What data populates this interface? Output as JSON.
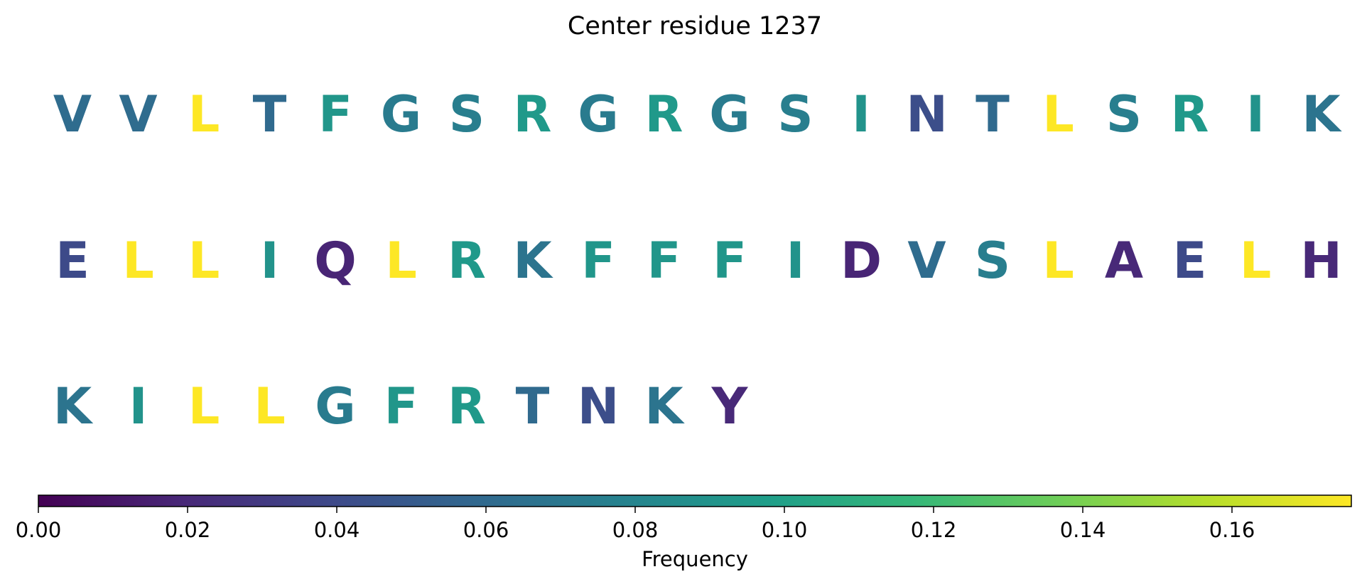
{
  "chart_data": {
    "type": "heatmap",
    "title": "Center residue 1237",
    "residues": [
      {
        "letter": "V",
        "frequency": 0.062
      },
      {
        "letter": "V",
        "frequency": 0.062
      },
      {
        "letter": "L",
        "frequency": 0.176
      },
      {
        "letter": "T",
        "frequency": 0.06
      },
      {
        "letter": "F",
        "frequency": 0.092
      },
      {
        "letter": "G",
        "frequency": 0.073
      },
      {
        "letter": "S",
        "frequency": 0.075
      },
      {
        "letter": "R",
        "frequency": 0.094
      },
      {
        "letter": "G",
        "frequency": 0.073
      },
      {
        "letter": "R",
        "frequency": 0.094
      },
      {
        "letter": "G",
        "frequency": 0.073
      },
      {
        "letter": "S",
        "frequency": 0.075
      },
      {
        "letter": "I",
        "frequency": 0.09
      },
      {
        "letter": "N",
        "frequency": 0.042
      },
      {
        "letter": "T",
        "frequency": 0.06
      },
      {
        "letter": "L",
        "frequency": 0.176
      },
      {
        "letter": "S",
        "frequency": 0.075
      },
      {
        "letter": "R",
        "frequency": 0.094
      },
      {
        "letter": "I",
        "frequency": 0.09
      },
      {
        "letter": "K",
        "frequency": 0.068
      },
      {
        "letter": "E",
        "frequency": 0.04
      },
      {
        "letter": "L",
        "frequency": 0.176
      },
      {
        "letter": "L",
        "frequency": 0.176
      },
      {
        "letter": "I",
        "frequency": 0.09
      },
      {
        "letter": "Q",
        "frequency": 0.018
      },
      {
        "letter": "L",
        "frequency": 0.176
      },
      {
        "letter": "R",
        "frequency": 0.094
      },
      {
        "letter": "K",
        "frequency": 0.068
      },
      {
        "letter": "F",
        "frequency": 0.092
      },
      {
        "letter": "F",
        "frequency": 0.092
      },
      {
        "letter": "F",
        "frequency": 0.092
      },
      {
        "letter": "I",
        "frequency": 0.09
      },
      {
        "letter": "D",
        "frequency": 0.018
      },
      {
        "letter": "V",
        "frequency": 0.062
      },
      {
        "letter": "S",
        "frequency": 0.075
      },
      {
        "letter": "L",
        "frequency": 0.176
      },
      {
        "letter": "A",
        "frequency": 0.02
      },
      {
        "letter": "E",
        "frequency": 0.04
      },
      {
        "letter": "L",
        "frequency": 0.176
      },
      {
        "letter": "H",
        "frequency": 0.02
      },
      {
        "letter": "K",
        "frequency": 0.068
      },
      {
        "letter": "I",
        "frequency": 0.09
      },
      {
        "letter": "L",
        "frequency": 0.176
      },
      {
        "letter": "L",
        "frequency": 0.176
      },
      {
        "letter": "G",
        "frequency": 0.073
      },
      {
        "letter": "F",
        "frequency": 0.092
      },
      {
        "letter": "R",
        "frequency": 0.094
      },
      {
        "letter": "T",
        "frequency": 0.06
      },
      {
        "letter": "N",
        "frequency": 0.042
      },
      {
        "letter": "K",
        "frequency": 0.068
      },
      {
        "letter": "Y",
        "frequency": 0.02
      }
    ],
    "colorbar": {
      "label": "Frequency",
      "range": [
        0,
        0.176
      ],
      "ticks": [
        0.0,
        0.02,
        0.04,
        0.06,
        0.08,
        0.1,
        0.12,
        0.14,
        0.16
      ],
      "tick_labels": [
        "0.00",
        "0.02",
        "0.04",
        "0.06",
        "0.08",
        "0.10",
        "0.12",
        "0.14",
        "0.16"
      ],
      "colormap": "viridis",
      "colormap_stops": [
        "#440154",
        "#482878",
        "#3e4989",
        "#31688e",
        "#26828e",
        "#1f9e89",
        "#35b779",
        "#6ece58",
        "#b5de2b",
        "#fde725"
      ]
    }
  }
}
